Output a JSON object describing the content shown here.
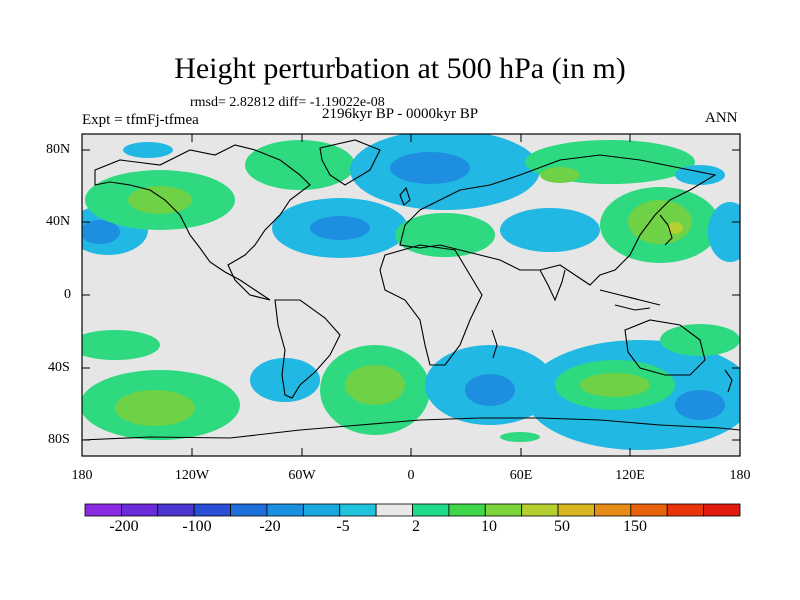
{
  "title": "Height perturbation at 500 hPa (in m)",
  "stats": {
    "rmsd_text": "rmsd= 2.82812 diff= -1.19022e-08"
  },
  "experiment": "Expt = tfmFj-tfmea",
  "period": "2196kyr BP - 0000kyr BP",
  "season": "ANN",
  "lat_labels": [
    "80N",
    "40N",
    "0",
    "40S",
    "80S"
  ],
  "lon_labels": [
    "180",
    "120W",
    "60W",
    "0",
    "60E",
    "120E",
    "180"
  ],
  "colorbar": {
    "labels": [
      "-200",
      "-100",
      "-20",
      "-5",
      "2",
      "10",
      "50",
      "150"
    ],
    "colors": [
      "#8a2be2",
      "#6a2cd8",
      "#4b37d0",
      "#2a4fd6",
      "#1e6fdc",
      "#1b8fe0",
      "#18a9e0",
      "#20c3de",
      "#e8e8e8",
      "#1fdc8a",
      "#3fd64a",
      "#7cd43a",
      "#b5cf2e",
      "#d9b51f",
      "#e58c16",
      "#e8620e",
      "#e8360a",
      "#e31a0e"
    ]
  },
  "colors": {
    "land_background": "#e6e6e6",
    "positive_light": "#2fd980",
    "positive_mid": "#6fd146",
    "negative_light": "#22b8e4",
    "negative_mid": "#1d8ee0"
  }
}
